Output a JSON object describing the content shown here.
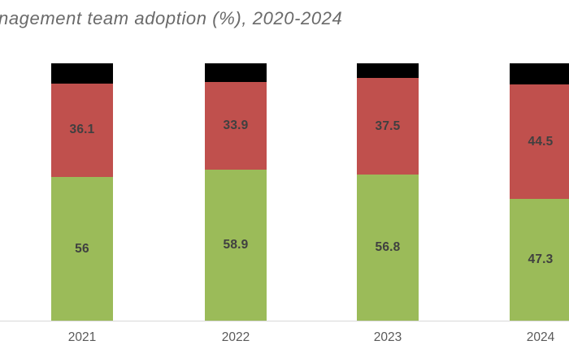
{
  "chart_data": {
    "type": "bar",
    "variant": "stacked-100-percent-column",
    "title": "nagement team adoption (%), 2020-2024",
    "title_note": "left edge of title is cropped by the image edge",
    "categories": [
      "2021",
      "2022",
      "2023",
      "2024"
    ],
    "series": [
      {
        "name": "green-bottom-segment",
        "color": "#9BBB59",
        "values": [
          56,
          58.9,
          56.8,
          47.3
        ],
        "labels": [
          "56",
          "58.9",
          "56.8",
          "47.3"
        ]
      },
      {
        "name": "red-middle-segment",
        "color": "#C0504D",
        "values": [
          36.1,
          33.9,
          37.5,
          44.5
        ],
        "labels": [
          "36.1",
          "33.9",
          "37.5",
          "44.5"
        ]
      },
      {
        "name": "black-top-remainder",
        "color": "#000000",
        "values": [
          7.9,
          7.2,
          5.7,
          8.2
        ],
        "labels": [
          "",
          "",
          "",
          ""
        ]
      }
    ],
    "stack_total": 100,
    "ylim": [
      0,
      100
    ],
    "grid": false,
    "legend": "none",
    "xlabel": "",
    "ylabel": ""
  },
  "colors": {
    "title_text": "#6A6A6A",
    "data_label_text": "#404040",
    "tick_label_text": "#595959",
    "axis_line": "#D9D9D9",
    "background": "#FFFFFF"
  }
}
